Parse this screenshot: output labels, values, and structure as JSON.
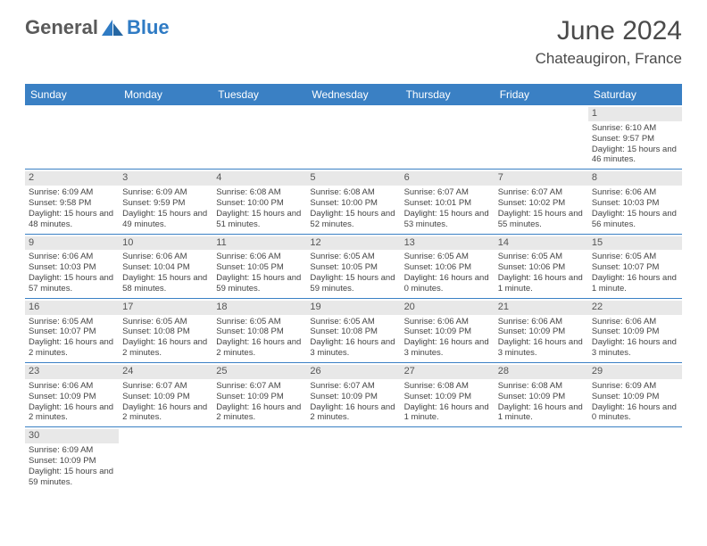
{
  "logo": {
    "text1": "General",
    "text2": "Blue"
  },
  "title": "June 2024",
  "location": "Chateaugiron, France",
  "colors": {
    "header_bg": "#3a80c4",
    "header_fg": "#ffffff",
    "daynum_bg": "#e8e8e8",
    "row_border": "#3a80c4",
    "logo_blue": "#2f7bc4",
    "logo_gray": "#5a5a5a",
    "text": "#444444"
  },
  "day_headers": [
    "Sunday",
    "Monday",
    "Tuesday",
    "Wednesday",
    "Thursday",
    "Friday",
    "Saturday"
  ],
  "weeks": [
    [
      null,
      null,
      null,
      null,
      null,
      null,
      {
        "n": "1",
        "sr": "Sunrise: 6:10 AM",
        "ss": "Sunset: 9:57 PM",
        "dl": "Daylight: 15 hours and 46 minutes."
      }
    ],
    [
      {
        "n": "2",
        "sr": "Sunrise: 6:09 AM",
        "ss": "Sunset: 9:58 PM",
        "dl": "Daylight: 15 hours and 48 minutes."
      },
      {
        "n": "3",
        "sr": "Sunrise: 6:09 AM",
        "ss": "Sunset: 9:59 PM",
        "dl": "Daylight: 15 hours and 49 minutes."
      },
      {
        "n": "4",
        "sr": "Sunrise: 6:08 AM",
        "ss": "Sunset: 10:00 PM",
        "dl": "Daylight: 15 hours and 51 minutes."
      },
      {
        "n": "5",
        "sr": "Sunrise: 6:08 AM",
        "ss": "Sunset: 10:00 PM",
        "dl": "Daylight: 15 hours and 52 minutes."
      },
      {
        "n": "6",
        "sr": "Sunrise: 6:07 AM",
        "ss": "Sunset: 10:01 PM",
        "dl": "Daylight: 15 hours and 53 minutes."
      },
      {
        "n": "7",
        "sr": "Sunrise: 6:07 AM",
        "ss": "Sunset: 10:02 PM",
        "dl": "Daylight: 15 hours and 55 minutes."
      },
      {
        "n": "8",
        "sr": "Sunrise: 6:06 AM",
        "ss": "Sunset: 10:03 PM",
        "dl": "Daylight: 15 hours and 56 minutes."
      }
    ],
    [
      {
        "n": "9",
        "sr": "Sunrise: 6:06 AM",
        "ss": "Sunset: 10:03 PM",
        "dl": "Daylight: 15 hours and 57 minutes."
      },
      {
        "n": "10",
        "sr": "Sunrise: 6:06 AM",
        "ss": "Sunset: 10:04 PM",
        "dl": "Daylight: 15 hours and 58 minutes."
      },
      {
        "n": "11",
        "sr": "Sunrise: 6:06 AM",
        "ss": "Sunset: 10:05 PM",
        "dl": "Daylight: 15 hours and 59 minutes."
      },
      {
        "n": "12",
        "sr": "Sunrise: 6:05 AM",
        "ss": "Sunset: 10:05 PM",
        "dl": "Daylight: 15 hours and 59 minutes."
      },
      {
        "n": "13",
        "sr": "Sunrise: 6:05 AM",
        "ss": "Sunset: 10:06 PM",
        "dl": "Daylight: 16 hours and 0 minutes."
      },
      {
        "n": "14",
        "sr": "Sunrise: 6:05 AM",
        "ss": "Sunset: 10:06 PM",
        "dl": "Daylight: 16 hours and 1 minute."
      },
      {
        "n": "15",
        "sr": "Sunrise: 6:05 AM",
        "ss": "Sunset: 10:07 PM",
        "dl": "Daylight: 16 hours and 1 minute."
      }
    ],
    [
      {
        "n": "16",
        "sr": "Sunrise: 6:05 AM",
        "ss": "Sunset: 10:07 PM",
        "dl": "Daylight: 16 hours and 2 minutes."
      },
      {
        "n": "17",
        "sr": "Sunrise: 6:05 AM",
        "ss": "Sunset: 10:08 PM",
        "dl": "Daylight: 16 hours and 2 minutes."
      },
      {
        "n": "18",
        "sr": "Sunrise: 6:05 AM",
        "ss": "Sunset: 10:08 PM",
        "dl": "Daylight: 16 hours and 2 minutes."
      },
      {
        "n": "19",
        "sr": "Sunrise: 6:05 AM",
        "ss": "Sunset: 10:08 PM",
        "dl": "Daylight: 16 hours and 3 minutes."
      },
      {
        "n": "20",
        "sr": "Sunrise: 6:06 AM",
        "ss": "Sunset: 10:09 PM",
        "dl": "Daylight: 16 hours and 3 minutes."
      },
      {
        "n": "21",
        "sr": "Sunrise: 6:06 AM",
        "ss": "Sunset: 10:09 PM",
        "dl": "Daylight: 16 hours and 3 minutes."
      },
      {
        "n": "22",
        "sr": "Sunrise: 6:06 AM",
        "ss": "Sunset: 10:09 PM",
        "dl": "Daylight: 16 hours and 3 minutes."
      }
    ],
    [
      {
        "n": "23",
        "sr": "Sunrise: 6:06 AM",
        "ss": "Sunset: 10:09 PM",
        "dl": "Daylight: 16 hours and 2 minutes."
      },
      {
        "n": "24",
        "sr": "Sunrise: 6:07 AM",
        "ss": "Sunset: 10:09 PM",
        "dl": "Daylight: 16 hours and 2 minutes."
      },
      {
        "n": "25",
        "sr": "Sunrise: 6:07 AM",
        "ss": "Sunset: 10:09 PM",
        "dl": "Daylight: 16 hours and 2 minutes."
      },
      {
        "n": "26",
        "sr": "Sunrise: 6:07 AM",
        "ss": "Sunset: 10:09 PM",
        "dl": "Daylight: 16 hours and 2 minutes."
      },
      {
        "n": "27",
        "sr": "Sunrise: 6:08 AM",
        "ss": "Sunset: 10:09 PM",
        "dl": "Daylight: 16 hours and 1 minute."
      },
      {
        "n": "28",
        "sr": "Sunrise: 6:08 AM",
        "ss": "Sunset: 10:09 PM",
        "dl": "Daylight: 16 hours and 1 minute."
      },
      {
        "n": "29",
        "sr": "Sunrise: 6:09 AM",
        "ss": "Sunset: 10:09 PM",
        "dl": "Daylight: 16 hours and 0 minutes."
      }
    ],
    [
      {
        "n": "30",
        "sr": "Sunrise: 6:09 AM",
        "ss": "Sunset: 10:09 PM",
        "dl": "Daylight: 15 hours and 59 minutes."
      },
      null,
      null,
      null,
      null,
      null,
      null
    ]
  ]
}
